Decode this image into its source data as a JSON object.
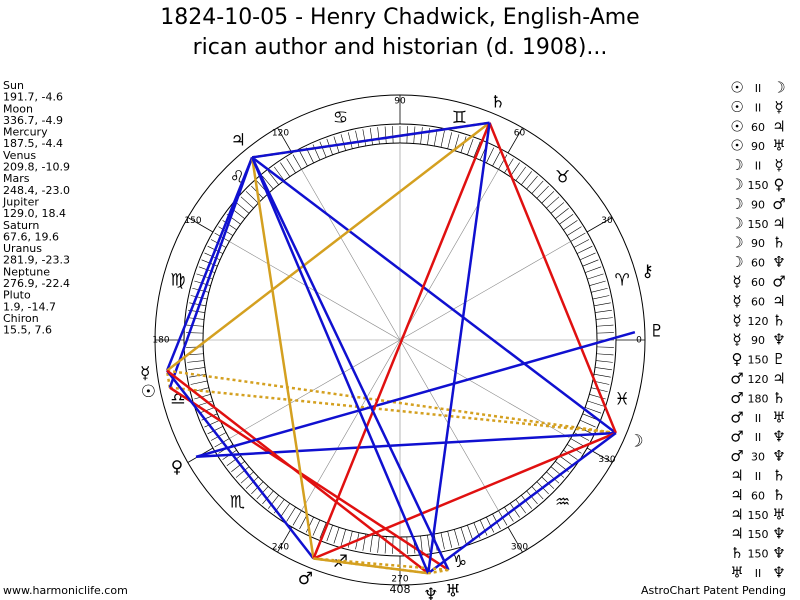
{
  "header": {
    "title": [
      "1824-10-05 - Henry Chadwick, English-Ame",
      "rican author and historian (d. 1908)..."
    ]
  },
  "planets": [
    {
      "name": "Sun",
      "glyph": "☉",
      "coords": "191.7, -4.6"
    },
    {
      "name": "Moon",
      "glyph": "☽",
      "coords": "336.7, -4.9"
    },
    {
      "name": "Mercury",
      "glyph": "☿",
      "coords": "187.5, -4.4"
    },
    {
      "name": "Venus",
      "glyph": "♀",
      "coords": "209.8, -10.9"
    },
    {
      "name": "Mars",
      "glyph": "♂",
      "coords": "248.4, -23.0"
    },
    {
      "name": "Jupiter",
      "glyph": "♃",
      "coords": "129.0, 18.4"
    },
    {
      "name": "Saturn",
      "glyph": "♄",
      "coords": "67.6, 19.6"
    },
    {
      "name": "Uranus",
      "glyph": "♅",
      "coords": "281.9, -23.3"
    },
    {
      "name": "Neptune",
      "glyph": "♆",
      "coords": "276.9, -22.4"
    },
    {
      "name": "Pluto",
      "glyph": "♇",
      "coords": "1.9, -14.7"
    },
    {
      "name": "Chiron",
      "glyph": "⚷",
      "coords": "15.5, 7.6"
    }
  ],
  "aspects": [
    [
      "☉",
      "II",
      "☽"
    ],
    [
      "☉",
      "II",
      "☿"
    ],
    [
      "☉",
      "60",
      "♃"
    ],
    [
      "☉",
      "90",
      "♅"
    ],
    [
      "☽",
      "II",
      "☿"
    ],
    [
      "☽",
      "150",
      "♀"
    ],
    [
      "☽",
      "90",
      "♂"
    ],
    [
      "☽",
      "150",
      "♃"
    ],
    [
      "☽",
      "90",
      "♄"
    ],
    [
      "☽",
      "60",
      "♆"
    ],
    [
      "☿",
      "60",
      "♂"
    ],
    [
      "☿",
      "60",
      "♃"
    ],
    [
      "☿",
      "120",
      "♄"
    ],
    [
      "☿",
      "90",
      "♆"
    ],
    [
      "♀",
      "150",
      "♇"
    ],
    [
      "♂",
      "120",
      "♃"
    ],
    [
      "♂",
      "180",
      "♄"
    ],
    [
      "♂",
      "II",
      "♅"
    ],
    [
      "♂",
      "II",
      "♆"
    ],
    [
      "♂",
      "30",
      "♆"
    ],
    [
      "♃",
      "II",
      "♄"
    ],
    [
      "♃",
      "60",
      "♄"
    ],
    [
      "♃",
      "150",
      "♅"
    ],
    [
      "♃",
      "150",
      "♆"
    ],
    [
      "♄",
      "150",
      "♆"
    ],
    [
      "♅",
      "II",
      "♆"
    ]
  ],
  "signs": [
    "♈",
    "♉",
    "♊",
    "♋",
    "♌",
    "♍",
    "♎",
    "♏",
    "♐",
    "♑",
    "♒",
    "♓"
  ],
  "degree_labels": [
    0,
    30,
    60,
    90,
    120,
    150,
    180,
    240,
    270,
    300,
    330
  ],
  "bottom_label": "408",
  "footer": {
    "left": "www.harmoniclife.com",
    "right": "AstroChart Patent Pending"
  }
}
